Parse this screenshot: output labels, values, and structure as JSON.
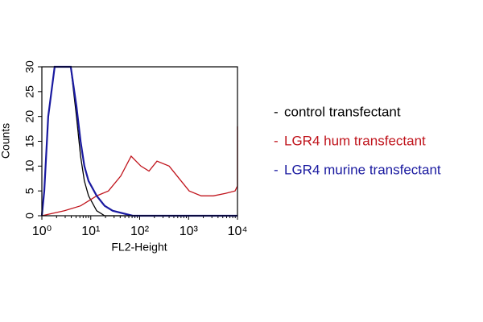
{
  "chart_data": {
    "type": "line",
    "xlabel": "FL2-Height",
    "ylabel": "Counts",
    "xscale": "log",
    "xlim": [
      1,
      10000
    ],
    "ylim": [
      0,
      30
    ],
    "xticks": [
      {
        "value": 1,
        "label": "10⁰"
      },
      {
        "value": 10,
        "label": "10¹"
      },
      {
        "value": 100,
        "label": "10²"
      },
      {
        "value": 1000,
        "label": "10³"
      },
      {
        "value": 10000,
        "label": "10⁴"
      }
    ],
    "yticks": [
      0,
      5,
      10,
      15,
      20,
      25,
      30
    ],
    "legend": "right",
    "series": [
      {
        "name": "control transfectant",
        "color": "#000000",
        "x": [
          1,
          1.12,
          1.35,
          1.83,
          3.9,
          5.1,
          6.2,
          7.4,
          9.0,
          13.2,
          19.2,
          10000
        ],
        "values": [
          0,
          5,
          20,
          30,
          30,
          20,
          12,
          7,
          4,
          1,
          0,
          0
        ]
      },
      {
        "name": "LGR4 hum transfectant",
        "color": "#c0141c",
        "x": [
          1,
          2.9,
          6.2,
          13.2,
          23,
          41,
          67,
          106,
          155,
          226,
          400,
          705,
          1030,
          1820,
          3210,
          5660,
          8930,
          10000,
          10000
        ],
        "values": [
          0,
          1,
          2,
          4,
          5,
          8,
          12,
          10,
          9,
          11,
          10,
          7,
          5,
          4,
          4,
          4.5,
          5,
          6,
          18
        ]
      },
      {
        "name": "LGR4 murine transfectant",
        "color": "#1a1aa0",
        "x": [
          1,
          1.12,
          1.35,
          1.83,
          3.9,
          5.1,
          6.2,
          7.4,
          9.0,
          13.2,
          19.2,
          28.1,
          72,
          10000
        ],
        "values": [
          0,
          5,
          20,
          30,
          30,
          22,
          15,
          10,
          7,
          4,
          2,
          1,
          0,
          0
        ]
      }
    ]
  }
}
